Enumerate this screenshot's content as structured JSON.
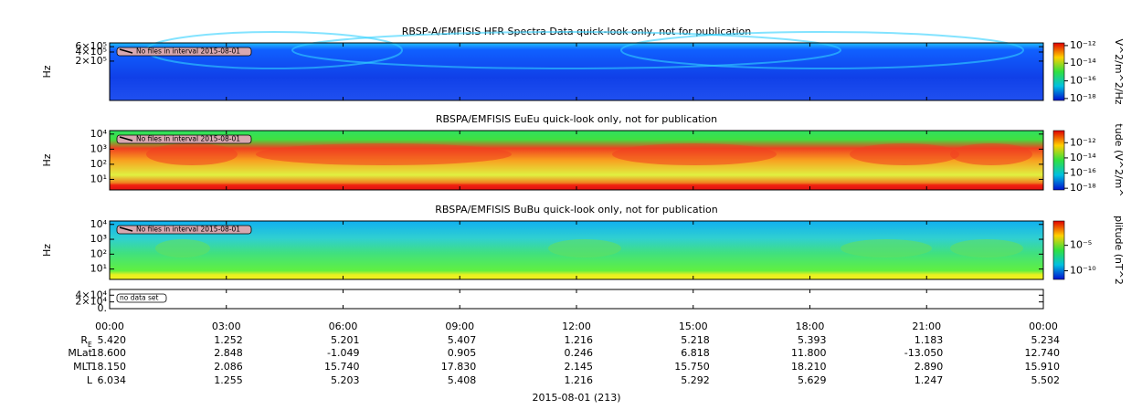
{
  "chart_data": [
    {
      "type": "spectrogram",
      "title": "RBSP-A/EMFISIS  HFR Spectra Data quick-look only, not for publication",
      "ylabel": "Hz",
      "ylog": true,
      "ylim": [
        10000,
        800000
      ],
      "yticks": [
        {
          "value": 200000,
          "label": "2×10⁵"
        },
        {
          "value": 400000,
          "label": "4×10⁵"
        },
        {
          "value": 600000,
          "label": "6×10⁵"
        }
      ],
      "annotation": "No files in interval 2015-08-01",
      "colorbar_label": "V^2/m^2/Hz",
      "clog": true,
      "clim": [
        6e-19,
        2e-12
      ],
      "cticks": [
        {
          "value": 1e-12,
          "label": "10⁻¹²"
        },
        {
          "value": 1e-14,
          "label": "10⁻¹⁴"
        },
        {
          "value": 1e-16,
          "label": "10⁻¹⁶"
        },
        {
          "value": 1e-18,
          "label": "10⁻¹⁸"
        }
      ]
    },
    {
      "type": "spectrogram",
      "title": "RBSPA/EMFISIS  EuEu quick-look only, not for publication",
      "ylabel": "Hz",
      "ylog": true,
      "ylim": [
        2,
        17000
      ],
      "yticks": [
        {
          "value": 10,
          "label": "10¹"
        },
        {
          "value": 100,
          "label": "10²"
        },
        {
          "value": 1000,
          "label": "10³"
        },
        {
          "value": 10000,
          "label": "10⁴"
        }
      ],
      "annotation": "No files in interval 2015-08-01",
      "colorbar_label": "tude (V^2/m^",
      "clog": true,
      "clim": [
        6e-19,
        4e-11
      ],
      "cticks": [
        {
          "value": 1e-12,
          "label": "10⁻¹²"
        },
        {
          "value": 1e-14,
          "label": "10⁻¹⁴"
        },
        {
          "value": 1e-16,
          "label": "10⁻¹⁶"
        },
        {
          "value": 1e-18,
          "label": "10⁻¹⁸"
        }
      ]
    },
    {
      "type": "spectrogram",
      "title": "RBSPA/EMFISIS  BuBu quick-look only, not for publication",
      "ylabel": "Hz",
      "ylog": true,
      "ylim": [
        2,
        17000
      ],
      "yticks": [
        {
          "value": 10,
          "label": "10¹"
        },
        {
          "value": 100,
          "label": "10²"
        },
        {
          "value": 1000,
          "label": "10³"
        },
        {
          "value": 10000,
          "label": "10⁴"
        }
      ],
      "annotation": "No files in interval 2015-08-01",
      "colorbar_label": "plitude (nT^2",
      "clog": true,
      "clim": [
        2e-12,
        0.6
      ],
      "cticks": [
        {
          "value": 1e-05,
          "label": "10⁻⁵"
        },
        {
          "value": 1e-10,
          "label": "10⁻¹⁰"
        }
      ]
    },
    {
      "type": "empty",
      "ylog": false,
      "ylim": [
        0,
        57000
      ],
      "yticks": [
        {
          "value": 0,
          "label": "0."
        },
        {
          "value": 20000,
          "label": "2×10⁴"
        },
        {
          "value": 40000,
          "label": "4×10⁴"
        }
      ],
      "annotation": "no data set",
      "xlim": [
        0,
        24
      ],
      "xticks": [
        {
          "value": 0,
          "label": "00:00"
        },
        {
          "value": 3,
          "label": "03:00"
        },
        {
          "value": 6,
          "label": "06:00"
        },
        {
          "value": 9,
          "label": "09:00"
        },
        {
          "value": 12,
          "label": "12:00"
        },
        {
          "value": 15,
          "label": "15:00"
        },
        {
          "value": 18,
          "label": "18:00"
        },
        {
          "value": 21,
          "label": "21:00"
        },
        {
          "value": 24,
          "label": "00:00"
        }
      ],
      "xlabel": "2015-08-01 (213)"
    }
  ],
  "ephemeris": [
    {
      "label": "R",
      "sub": "E",
      "values": [
        "5.420",
        "1.252",
        "5.201",
        "5.407",
        "1.216",
        "5.218",
        "5.393",
        "1.183",
        "5.234"
      ]
    },
    {
      "label": "MLat",
      "values": [
        "18.600",
        "2.848",
        "-1.049",
        "0.905",
        "0.246",
        "6.818",
        "11.800",
        "-13.050",
        "12.740"
      ]
    },
    {
      "label": "MLT",
      "values": [
        "18.150",
        "2.086",
        "15.740",
        "17.830",
        "2.145",
        "15.750",
        "18.210",
        "2.890",
        "15.910"
      ]
    },
    {
      "label": "L",
      "values": [
        "6.034",
        "1.255",
        "5.203",
        "5.408",
        "1.216",
        "5.292",
        "5.629",
        "1.247",
        "5.502"
      ]
    }
  ]
}
